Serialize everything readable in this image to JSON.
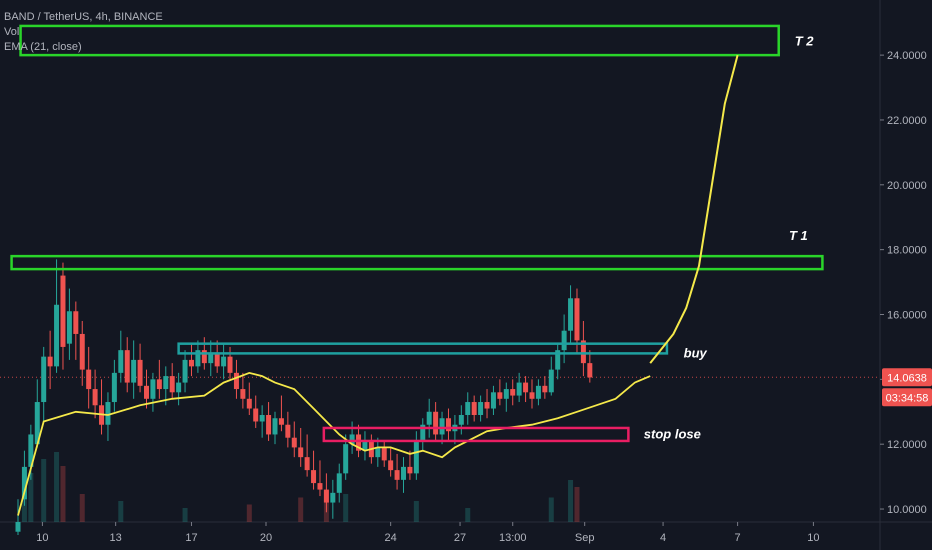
{
  "header": {
    "symbol_line": "BAND / TetherUS, 4h, BINANCE",
    "vol_label": "Vol",
    "ema_label": "EMA (21, close)"
  },
  "price_labels": {
    "current_price": "14.0638",
    "countdown": "03:34:58"
  },
  "annotations": {
    "t2": "T 2",
    "t1": "T 1",
    "buy": "buy",
    "stop": "stop lose"
  },
  "colors": {
    "background": "#131722",
    "up_candle": "#26a69a",
    "down_candle": "#ef5350",
    "ema": "#f5e94a",
    "target_box": "#2ad52a",
    "entry_box": "#1fa0a0",
    "stop_box": "#e91e63",
    "price_tag": "#ef5350"
  },
  "chart_data": {
    "type": "candlestick",
    "title": "BAND / TetherUS, 4h, BINANCE",
    "indicators": [
      "Vol",
      "EMA (21, close)"
    ],
    "x_ticks": [
      "10",
      "13",
      "17",
      "20",
      "24",
      "27",
      "13:00",
      "Sep",
      "4",
      "7",
      "10"
    ],
    "y_ticks": [
      10,
      12,
      14,
      16,
      18,
      20,
      22,
      24
    ],
    "y_tick_labels": [
      "10.0000",
      "12.0000",
      "14.0000",
      "16.0000",
      "18.0000",
      "20.0000",
      "22.0000",
      "24.0000"
    ],
    "ylim": [
      9.6,
      25.7
    ],
    "last_price": 14.0638,
    "ema_path": [
      [
        0.0,
        9.8
      ],
      [
        2.0,
        12.7
      ],
      [
        4.5,
        13.0
      ],
      [
        7.0,
        12.9
      ],
      [
        9.5,
        13.2
      ],
      [
        12.0,
        13.4
      ],
      [
        14.5,
        13.5
      ],
      [
        16.0,
        13.9
      ],
      [
        18.0,
        14.2
      ],
      [
        19.0,
        14.1
      ],
      [
        20.0,
        13.9
      ],
      [
        21.5,
        13.7
      ],
      [
        23.0,
        13.1
      ],
      [
        24.0,
        12.7
      ],
      [
        25.0,
        12.3
      ],
      [
        26.0,
        12.0
      ],
      [
        27.0,
        11.8
      ],
      [
        28.0,
        11.9
      ],
      [
        29.0,
        11.9
      ],
      [
        30.5,
        11.7
      ],
      [
        31.5,
        11.8
      ],
      [
        33.0,
        11.6
      ],
      [
        34.0,
        11.9
      ],
      [
        35.0,
        12.1
      ],
      [
        36.5,
        12.4
      ],
      [
        38.0,
        12.5
      ],
      [
        40.0,
        12.6
      ],
      [
        42.0,
        12.8
      ],
      [
        43.5,
        13.0
      ],
      [
        45.0,
        13.2
      ],
      [
        46.5,
        13.4
      ],
      [
        48.0,
        13.9
      ],
      [
        49.2,
        14.1
      ]
    ],
    "projection_path": [
      [
        49.2,
        14.5
      ],
      [
        50.0,
        14.9
      ],
      [
        51.0,
        15.4
      ],
      [
        52.0,
        16.2
      ],
      [
        53.0,
        17.5
      ],
      [
        54.0,
        20.0
      ],
      [
        55.0,
        22.5
      ],
      [
        56.0,
        24.0
      ]
    ],
    "zones": [
      {
        "label": "T 2",
        "from_x": 0.2,
        "to_x": 59.2,
        "low": 24.0,
        "high": 24.9
      },
      {
        "label": "T 1",
        "from_x": -0.5,
        "to_x": 62.6,
        "low": 17.4,
        "high": 17.8
      },
      {
        "label": "buy",
        "from_x": 12.5,
        "to_x": 50.5,
        "low": 14.8,
        "high": 15.1
      },
      {
        "label": "stop lose",
        "from_x": 23.8,
        "to_x": 47.5,
        "low": 12.1,
        "high": 12.5
      }
    ],
    "candles": [
      {
        "x": 0.0,
        "o": 9.3,
        "h": 10.3,
        "l": 9.2,
        "c": 9.6
      },
      {
        "x": 0.5,
        "o": 10.3,
        "h": 11.8,
        "l": 10.1,
        "c": 11.3
      },
      {
        "x": 1.0,
        "o": 11.3,
        "h": 12.6,
        "l": 10.9,
        "c": 12.3
      },
      {
        "x": 1.5,
        "o": 12.0,
        "h": 14.0,
        "l": 11.9,
        "c": 13.3
      },
      {
        "x": 2.0,
        "o": 13.3,
        "h": 15.0,
        "l": 12.7,
        "c": 14.7
      },
      {
        "x": 2.5,
        "o": 14.7,
        "h": 15.5,
        "l": 13.7,
        "c": 14.4
      },
      {
        "x": 3.0,
        "o": 14.4,
        "h": 17.7,
        "l": 14.2,
        "c": 16.3
      },
      {
        "x": 3.5,
        "o": 17.2,
        "h": 17.6,
        "l": 14.3,
        "c": 15.0
      },
      {
        "x": 4.0,
        "o": 15.1,
        "h": 16.8,
        "l": 14.6,
        "c": 16.1
      },
      {
        "x": 4.5,
        "o": 16.1,
        "h": 16.4,
        "l": 14.6,
        "c": 15.4
      },
      {
        "x": 5.0,
        "o": 15.4,
        "h": 15.8,
        "l": 13.8,
        "c": 14.3
      },
      {
        "x": 5.5,
        "o": 14.3,
        "h": 15.0,
        "l": 13.1,
        "c": 13.7
      },
      {
        "x": 6.0,
        "o": 13.7,
        "h": 14.3,
        "l": 12.8,
        "c": 13.2
      },
      {
        "x": 6.5,
        "o": 13.2,
        "h": 14.0,
        "l": 12.3,
        "c": 12.6
      },
      {
        "x": 7.0,
        "o": 12.6,
        "h": 13.6,
        "l": 12.1,
        "c": 13.3
      },
      {
        "x": 7.5,
        "o": 13.3,
        "h": 14.6,
        "l": 13.0,
        "c": 14.2
      },
      {
        "x": 8.0,
        "o": 14.2,
        "h": 15.5,
        "l": 13.9,
        "c": 14.9
      },
      {
        "x": 8.5,
        "o": 14.9,
        "h": 15.3,
        "l": 13.6,
        "c": 13.9
      },
      {
        "x": 9.0,
        "o": 13.9,
        "h": 15.2,
        "l": 13.4,
        "c": 14.6
      },
      {
        "x": 9.5,
        "o": 14.6,
        "h": 15.1,
        "l": 13.6,
        "c": 13.8
      },
      {
        "x": 10.0,
        "o": 13.8,
        "h": 14.3,
        "l": 13.1,
        "c": 13.4
      },
      {
        "x": 10.5,
        "o": 13.4,
        "h": 14.2,
        "l": 13.0,
        "c": 14.0
      },
      {
        "x": 11.0,
        "o": 14.0,
        "h": 14.6,
        "l": 13.4,
        "c": 13.7
      },
      {
        "x": 11.5,
        "o": 13.7,
        "h": 14.4,
        "l": 13.2,
        "c": 14.1
      },
      {
        "x": 12.0,
        "o": 14.1,
        "h": 14.5,
        "l": 13.4,
        "c": 13.6
      },
      {
        "x": 12.5,
        "o": 13.6,
        "h": 14.2,
        "l": 13.2,
        "c": 13.9
      },
      {
        "x": 13.0,
        "o": 13.9,
        "h": 14.9,
        "l": 13.6,
        "c": 14.6
      },
      {
        "x": 13.5,
        "o": 14.6,
        "h": 15.1,
        "l": 14.1,
        "c": 14.4
      },
      {
        "x": 14.0,
        "o": 14.4,
        "h": 15.2,
        "l": 14.2,
        "c": 14.9
      },
      {
        "x": 14.5,
        "o": 14.9,
        "h": 15.3,
        "l": 14.3,
        "c": 14.5
      },
      {
        "x": 15.0,
        "o": 14.5,
        "h": 15.2,
        "l": 14.1,
        "c": 14.8
      },
      {
        "x": 15.5,
        "o": 14.8,
        "h": 15.2,
        "l": 14.2,
        "c": 14.4
      },
      {
        "x": 16.0,
        "o": 14.4,
        "h": 15.1,
        "l": 14.0,
        "c": 14.7
      },
      {
        "x": 16.5,
        "o": 14.7,
        "h": 15.0,
        "l": 14.0,
        "c": 14.2
      },
      {
        "x": 17.0,
        "o": 14.2,
        "h": 14.6,
        "l": 13.4,
        "c": 13.7
      },
      {
        "x": 17.5,
        "o": 13.7,
        "h": 14.2,
        "l": 13.1,
        "c": 13.4
      },
      {
        "x": 18.0,
        "o": 13.4,
        "h": 13.9,
        "l": 12.9,
        "c": 13.1
      },
      {
        "x": 18.5,
        "o": 13.1,
        "h": 13.5,
        "l": 12.5,
        "c": 12.7
      },
      {
        "x": 19.0,
        "o": 12.7,
        "h": 13.2,
        "l": 12.2,
        "c": 12.9
      },
      {
        "x": 19.5,
        "o": 12.9,
        "h": 13.3,
        "l": 12.1,
        "c": 12.3
      },
      {
        "x": 20.0,
        "o": 12.3,
        "h": 13.0,
        "l": 12.0,
        "c": 12.8
      },
      {
        "x": 20.5,
        "o": 12.8,
        "h": 13.5,
        "l": 12.4,
        "c": 12.6
      },
      {
        "x": 21.0,
        "o": 12.6,
        "h": 13.0,
        "l": 11.9,
        "c": 12.2
      },
      {
        "x": 21.5,
        "o": 12.2,
        "h": 12.7,
        "l": 11.6,
        "c": 11.9
      },
      {
        "x": 22.0,
        "o": 11.9,
        "h": 12.5,
        "l": 11.3,
        "c": 11.6
      },
      {
        "x": 22.5,
        "o": 11.6,
        "h": 12.3,
        "l": 11.0,
        "c": 11.2
      },
      {
        "x": 23.0,
        "o": 11.2,
        "h": 11.8,
        "l": 10.6,
        "c": 10.8
      },
      {
        "x": 23.5,
        "o": 10.8,
        "h": 11.5,
        "l": 10.4,
        "c": 10.6
      },
      {
        "x": 24.0,
        "o": 10.6,
        "h": 11.1,
        "l": 9.9,
        "c": 10.2
      },
      {
        "x": 24.5,
        "o": 10.2,
        "h": 10.9,
        "l": 9.7,
        "c": 10.5
      },
      {
        "x": 25.0,
        "o": 10.5,
        "h": 11.4,
        "l": 10.2,
        "c": 11.1
      },
      {
        "x": 25.5,
        "o": 11.1,
        "h": 12.3,
        "l": 10.9,
        "c": 12.0
      },
      {
        "x": 26.0,
        "o": 12.0,
        "h": 12.7,
        "l": 11.7,
        "c": 12.3
      },
      {
        "x": 26.5,
        "o": 12.3,
        "h": 12.6,
        "l": 11.6,
        "c": 11.8
      },
      {
        "x": 27.0,
        "o": 11.8,
        "h": 12.4,
        "l": 11.5,
        "c": 12.1
      },
      {
        "x": 27.5,
        "o": 12.1,
        "h": 12.3,
        "l": 11.4,
        "c": 11.6
      },
      {
        "x": 28.0,
        "o": 11.6,
        "h": 12.2,
        "l": 11.3,
        "c": 11.9
      },
      {
        "x": 28.5,
        "o": 11.9,
        "h": 12.1,
        "l": 11.3,
        "c": 11.5
      },
      {
        "x": 29.0,
        "o": 11.5,
        "h": 11.9,
        "l": 11.0,
        "c": 11.2
      },
      {
        "x": 29.5,
        "o": 11.2,
        "h": 11.7,
        "l": 10.6,
        "c": 10.9
      },
      {
        "x": 30.0,
        "o": 10.9,
        "h": 11.6,
        "l": 10.5,
        "c": 11.3
      },
      {
        "x": 30.5,
        "o": 11.3,
        "h": 11.8,
        "l": 10.9,
        "c": 11.1
      },
      {
        "x": 31.0,
        "o": 11.1,
        "h": 12.4,
        "l": 10.9,
        "c": 12.1
      },
      {
        "x": 31.5,
        "o": 12.1,
        "h": 12.8,
        "l": 11.8,
        "c": 12.6
      },
      {
        "x": 32.0,
        "o": 12.6,
        "h": 13.4,
        "l": 12.2,
        "c": 13.0
      },
      {
        "x": 32.5,
        "o": 13.0,
        "h": 13.3,
        "l": 12.1,
        "c": 12.3
      },
      {
        "x": 33.0,
        "o": 12.3,
        "h": 13.0,
        "l": 12.0,
        "c": 12.8
      },
      {
        "x": 33.5,
        "o": 12.8,
        "h": 13.1,
        "l": 12.1,
        "c": 12.4
      },
      {
        "x": 34.0,
        "o": 12.4,
        "h": 12.9,
        "l": 12.0,
        "c": 12.6
      },
      {
        "x": 34.5,
        "o": 12.6,
        "h": 13.2,
        "l": 12.3,
        "c": 12.9
      },
      {
        "x": 35.0,
        "o": 12.9,
        "h": 13.6,
        "l": 12.6,
        "c": 13.3
      },
      {
        "x": 35.5,
        "o": 13.3,
        "h": 13.5,
        "l": 12.7,
        "c": 12.9
      },
      {
        "x": 36.0,
        "o": 12.9,
        "h": 13.5,
        "l": 12.7,
        "c": 13.3
      },
      {
        "x": 36.5,
        "o": 13.3,
        "h": 13.7,
        "l": 12.8,
        "c": 13.1
      },
      {
        "x": 37.0,
        "o": 13.1,
        "h": 13.8,
        "l": 12.9,
        "c": 13.6
      },
      {
        "x": 37.5,
        "o": 13.6,
        "h": 14.0,
        "l": 13.2,
        "c": 13.4
      },
      {
        "x": 38.0,
        "o": 13.4,
        "h": 13.9,
        "l": 13.0,
        "c": 13.7
      },
      {
        "x": 38.5,
        "o": 13.7,
        "h": 14.0,
        "l": 13.2,
        "c": 13.5
      },
      {
        "x": 39.0,
        "o": 13.5,
        "h": 14.2,
        "l": 13.3,
        "c": 13.9
      },
      {
        "x": 39.5,
        "o": 13.9,
        "h": 14.1,
        "l": 13.3,
        "c": 13.6
      },
      {
        "x": 40.0,
        "o": 13.6,
        "h": 14.0,
        "l": 13.1,
        "c": 13.4
      },
      {
        "x": 40.5,
        "o": 13.4,
        "h": 14.0,
        "l": 13.2,
        "c": 13.8
      },
      {
        "x": 41.0,
        "o": 13.8,
        "h": 14.1,
        "l": 13.4,
        "c": 13.6
      },
      {
        "x": 41.5,
        "o": 13.6,
        "h": 14.7,
        "l": 13.5,
        "c": 14.3
      },
      {
        "x": 42.0,
        "o": 14.3,
        "h": 15.1,
        "l": 14.0,
        "c": 14.9
      },
      {
        "x": 42.5,
        "o": 14.9,
        "h": 16.0,
        "l": 14.5,
        "c": 15.5
      },
      {
        "x": 43.0,
        "o": 15.5,
        "h": 16.9,
        "l": 15.1,
        "c": 16.5
      },
      {
        "x": 43.5,
        "o": 16.5,
        "h": 16.8,
        "l": 14.8,
        "c": 15.2
      },
      {
        "x": 44.0,
        "o": 15.2,
        "h": 15.8,
        "l": 14.1,
        "c": 14.5
      },
      {
        "x": 44.5,
        "o": 14.5,
        "h": 14.9,
        "l": 13.9,
        "c": 14.06
      }
    ],
    "volume": [
      {
        "x": 0.5,
        "v": 0.5,
        "up": true
      },
      {
        "x": 1.0,
        "v": 0.7,
        "up": true
      },
      {
        "x": 2.0,
        "v": 0.9,
        "up": true
      },
      {
        "x": 3.0,
        "v": 1.0,
        "up": true
      },
      {
        "x": 3.5,
        "v": 0.8,
        "up": false
      },
      {
        "x": 5.0,
        "v": 0.4,
        "up": false
      },
      {
        "x": 8.0,
        "v": 0.3,
        "up": true
      },
      {
        "x": 13.0,
        "v": 0.2,
        "up": true
      },
      {
        "x": 18.0,
        "v": 0.25,
        "up": false
      },
      {
        "x": 22.0,
        "v": 0.35,
        "up": false
      },
      {
        "x": 24.0,
        "v": 0.45,
        "up": false
      },
      {
        "x": 25.5,
        "v": 0.4,
        "up": true
      },
      {
        "x": 31.0,
        "v": 0.3,
        "up": true
      },
      {
        "x": 35.0,
        "v": 0.2,
        "up": true
      },
      {
        "x": 41.5,
        "v": 0.35,
        "up": true
      },
      {
        "x": 43.0,
        "v": 0.6,
        "up": true
      },
      {
        "x": 43.5,
        "v": 0.5,
        "up": false
      }
    ]
  }
}
